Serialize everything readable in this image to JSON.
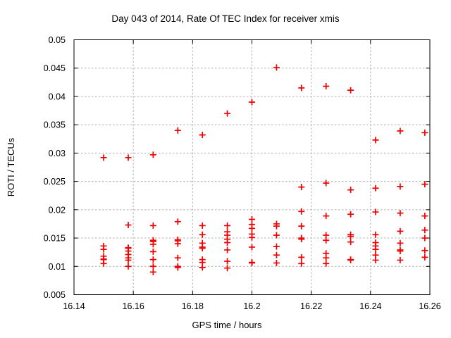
{
  "page": {
    "background": "#ffffff"
  },
  "chart_data": {
    "type": "scatter",
    "title": "Day 043 of 2014, Rate Of TEC Index for receiver xmis",
    "xlabel": "GPS time / hours",
    "ylabel": "ROTI / TECUs",
    "xlim": [
      16.14,
      16.26
    ],
    "ylim": [
      0.005,
      0.05
    ],
    "xticks": [
      16.14,
      16.16,
      16.18,
      16.2,
      16.22,
      16.24,
      16.26
    ],
    "xtick_labels": [
      "16.14",
      "16.16",
      "16.18",
      "16.2",
      "16.22",
      "16.24",
      "16.26"
    ],
    "yticks": [
      0.005,
      0.01,
      0.015,
      0.02,
      0.025,
      0.03,
      0.035,
      0.04,
      0.045,
      0.05
    ],
    "ytick_labels": [
      "0.005",
      "0.01",
      "0.015",
      "0.02",
      "0.025",
      "0.03",
      "0.035",
      "0.04",
      "0.045",
      "0.05"
    ],
    "grid": true,
    "legend_position": "none",
    "marker": {
      "shape": "plus",
      "color": "#ee0000",
      "size": 9,
      "stroke_width": 1.7
    },
    "grid_color": "#b0b0b0",
    "axis_color": "#000000",
    "series": [
      {
        "name": "ROTI",
        "points": [
          [
            16.15,
            0.0292
          ],
          [
            16.15,
            0.0136
          ],
          [
            16.15,
            0.013
          ],
          [
            16.15,
            0.0118
          ],
          [
            16.15,
            0.0113
          ],
          [
            16.15,
            0.0112
          ],
          [
            16.15,
            0.0105
          ],
          [
            16.1583,
            0.0292
          ],
          [
            16.1583,
            0.0173
          ],
          [
            16.1583,
            0.0133
          ],
          [
            16.1583,
            0.0132
          ],
          [
            16.1583,
            0.0127
          ],
          [
            16.1583,
            0.0121
          ],
          [
            16.1583,
            0.0115
          ],
          [
            16.1583,
            0.0111
          ],
          [
            16.1583,
            0.01
          ],
          [
            16.1667,
            0.0297
          ],
          [
            16.1667,
            0.0172
          ],
          [
            16.1667,
            0.0146
          ],
          [
            16.1667,
            0.0144
          ],
          [
            16.1667,
            0.0139
          ],
          [
            16.1667,
            0.0126
          ],
          [
            16.1667,
            0.0112
          ],
          [
            16.1667,
            0.01
          ],
          [
            16.1667,
            0.009
          ],
          [
            16.175,
            0.034
          ],
          [
            16.175,
            0.0179
          ],
          [
            16.175,
            0.0147
          ],
          [
            16.175,
            0.0145
          ],
          [
            16.175,
            0.014
          ],
          [
            16.175,
            0.0115
          ],
          [
            16.175,
            0.01
          ],
          [
            16.175,
            0.0098
          ],
          [
            16.1833,
            0.0332
          ],
          [
            16.1833,
            0.0172
          ],
          [
            16.1833,
            0.0156
          ],
          [
            16.1833,
            0.0141
          ],
          [
            16.1833,
            0.0134
          ],
          [
            16.1833,
            0.0132
          ],
          [
            16.1833,
            0.0112
          ],
          [
            16.1833,
            0.0107
          ],
          [
            16.1833,
            0.0098
          ],
          [
            16.1917,
            0.037
          ],
          [
            16.1917,
            0.0172
          ],
          [
            16.1917,
            0.0161
          ],
          [
            16.1917,
            0.0155
          ],
          [
            16.1917,
            0.0148
          ],
          [
            16.1917,
            0.0142
          ],
          [
            16.1917,
            0.0129
          ],
          [
            16.1917,
            0.0109
          ],
          [
            16.1917,
            0.0097
          ],
          [
            16.2,
            0.039
          ],
          [
            16.2,
            0.0183
          ],
          [
            16.2,
            0.0174
          ],
          [
            16.2,
            0.0167
          ],
          [
            16.2,
            0.0157
          ],
          [
            16.2,
            0.0151
          ],
          [
            16.2,
            0.0134
          ],
          [
            16.2,
            0.0107
          ],
          [
            16.2,
            0.0106
          ],
          [
            16.2083,
            0.0451
          ],
          [
            16.2083,
            0.0175
          ],
          [
            16.2083,
            0.0171
          ],
          [
            16.2083,
            0.0155
          ],
          [
            16.2083,
            0.0135
          ],
          [
            16.2083,
            0.012
          ],
          [
            16.2083,
            0.0106
          ],
          [
            16.2167,
            0.0415
          ],
          [
            16.2167,
            0.024
          ],
          [
            16.2167,
            0.0197
          ],
          [
            16.2167,
            0.0171
          ],
          [
            16.2167,
            0.015
          ],
          [
            16.2167,
            0.0148
          ],
          [
            16.2167,
            0.0116
          ],
          [
            16.2167,
            0.0105
          ],
          [
            16.225,
            0.0418
          ],
          [
            16.225,
            0.0247
          ],
          [
            16.225,
            0.0189
          ],
          [
            16.225,
            0.0155
          ],
          [
            16.225,
            0.0146
          ],
          [
            16.225,
            0.0123
          ],
          [
            16.225,
            0.0115
          ],
          [
            16.225,
            0.0105
          ],
          [
            16.2333,
            0.0411
          ],
          [
            16.2333,
            0.0235
          ],
          [
            16.2333,
            0.0192
          ],
          [
            16.2333,
            0.0156
          ],
          [
            16.2333,
            0.0153
          ],
          [
            16.2333,
            0.0143
          ],
          [
            16.2333,
            0.0112
          ],
          [
            16.2333,
            0.0111
          ],
          [
            16.2417,
            0.0323
          ],
          [
            16.2417,
            0.0238
          ],
          [
            16.2417,
            0.0196
          ],
          [
            16.2417,
            0.0156
          ],
          [
            16.2417,
            0.0142
          ],
          [
            16.2417,
            0.0136
          ],
          [
            16.2417,
            0.013
          ],
          [
            16.2417,
            0.012
          ],
          [
            16.2417,
            0.0111
          ],
          [
            16.25,
            0.0339
          ],
          [
            16.25,
            0.0241
          ],
          [
            16.25,
            0.0194
          ],
          [
            16.25,
            0.0162
          ],
          [
            16.25,
            0.0141
          ],
          [
            16.25,
            0.0129
          ],
          [
            16.25,
            0.0127
          ],
          [
            16.25,
            0.0111
          ],
          [
            16.2583,
            0.0336
          ],
          [
            16.2583,
            0.0245
          ],
          [
            16.2583,
            0.0189
          ],
          [
            16.2583,
            0.0164
          ],
          [
            16.2583,
            0.015
          ],
          [
            16.2583,
            0.0128
          ],
          [
            16.2583,
            0.0116
          ]
        ]
      }
    ]
  }
}
